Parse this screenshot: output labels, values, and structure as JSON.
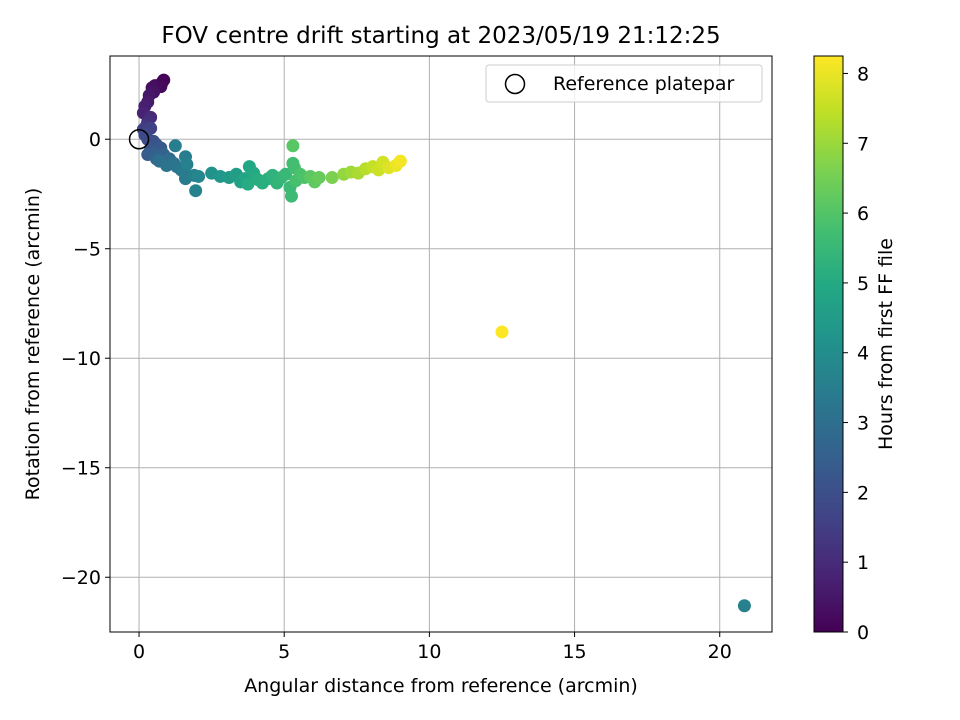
{
  "chart_data": {
    "type": "scatter",
    "title": "FOV centre drift starting at 2023/05/19 21:12:25",
    "xlabel": "Angular distance from reference (arcmin)",
    "ylabel": "Rotation from reference (arcmin)",
    "xlim": [
      -1.0,
      21.8
    ],
    "ylim": [
      -22.5,
      3.8
    ],
    "xticks": [
      0,
      5,
      10,
      15,
      20
    ],
    "xtick_labels": [
      "0",
      "5",
      "10",
      "15",
      "20"
    ],
    "yticks": [
      0,
      -5,
      -10,
      -15,
      -20
    ],
    "ytick_labels": [
      "0",
      "−5",
      "−10",
      "−15",
      "−20"
    ],
    "grid": true,
    "legend": {
      "placement": "top-right",
      "label": "Reference platepar",
      "marker": "open-circle"
    },
    "reference_point": {
      "x": 0,
      "y": 0
    },
    "colormap": "viridis",
    "colorbar": {
      "label": "Hours from first FF file",
      "range": [
        0,
        8.25
      ],
      "ticks": [
        0,
        1,
        2,
        3,
        4,
        5,
        6,
        7,
        8
      ],
      "tick_labels": [
        "0",
        "1",
        "2",
        "3",
        "4",
        "5",
        "6",
        "7",
        "8"
      ]
    },
    "points": [
      {
        "x": 0.85,
        "y": 2.7,
        "h": 0.05
      },
      {
        "x": 0.8,
        "y": 2.6,
        "h": 0.1
      },
      {
        "x": 0.75,
        "y": 2.4,
        "h": 0.2
      },
      {
        "x": 0.55,
        "y": 2.45,
        "h": 0.25
      },
      {
        "x": 0.45,
        "y": 2.35,
        "h": 0.35
      },
      {
        "x": 0.5,
        "y": 2.15,
        "h": 0.4
      },
      {
        "x": 0.35,
        "y": 2.0,
        "h": 0.5
      },
      {
        "x": 0.3,
        "y": 1.7,
        "h": 0.6
      },
      {
        "x": 0.2,
        "y": 1.5,
        "h": 0.7
      },
      {
        "x": 0.15,
        "y": 1.2,
        "h": 0.8
      },
      {
        "x": 0.4,
        "y": 1.0,
        "h": 1.0
      },
      {
        "x": 0.3,
        "y": 0.8,
        "h": 1.1
      },
      {
        "x": 0.25,
        "y": 0.6,
        "h": 1.3
      },
      {
        "x": 0.15,
        "y": 0.45,
        "h": 1.5
      },
      {
        "x": 0.4,
        "y": 0.5,
        "h": 1.6
      },
      {
        "x": 0.2,
        "y": 0.2,
        "h": 1.8
      },
      {
        "x": 0.3,
        "y": 0.0,
        "h": 1.9
      },
      {
        "x": 0.5,
        "y": -0.1,
        "h": 2.0
      },
      {
        "x": 0.6,
        "y": -0.25,
        "h": 2.1
      },
      {
        "x": 0.4,
        "y": -0.45,
        "h": 2.2
      },
      {
        "x": 0.75,
        "y": -0.4,
        "h": 2.3
      },
      {
        "x": 0.3,
        "y": -0.7,
        "h": 2.4
      },
      {
        "x": 0.55,
        "y": -0.65,
        "h": 2.5
      },
      {
        "x": 0.85,
        "y": -0.7,
        "h": 2.6
      },
      {
        "x": 0.6,
        "y": -0.9,
        "h": 2.7
      },
      {
        "x": 0.9,
        "y": -1.05,
        "h": 2.8
      },
      {
        "x": 1.05,
        "y": -0.9,
        "h": 2.9
      },
      {
        "x": 0.7,
        "y": -1.0,
        "h": 3.0
      },
      {
        "x": 1.2,
        "y": -1.1,
        "h": 3.1
      },
      {
        "x": 0.95,
        "y": -1.2,
        "h": 3.15
      },
      {
        "x": 1.3,
        "y": -1.25,
        "h": 3.2
      },
      {
        "x": 1.45,
        "y": -1.4,
        "h": 3.3
      },
      {
        "x": 1.55,
        "y": -1.5,
        "h": 3.35
      },
      {
        "x": 1.6,
        "y": -1.8,
        "h": 3.4
      },
      {
        "x": 1.25,
        "y": -0.3,
        "h": 3.45
      },
      {
        "x": 1.6,
        "y": -0.8,
        "h": 3.5
      },
      {
        "x": 1.65,
        "y": -1.15,
        "h": 3.55
      },
      {
        "x": 1.9,
        "y": -1.65,
        "h": 3.6
      },
      {
        "x": 1.95,
        "y": -2.35,
        "h": 3.65
      },
      {
        "x": 2.05,
        "y": -1.7,
        "h": 3.75
      },
      {
        "x": 2.5,
        "y": -1.55,
        "h": 4.2
      },
      {
        "x": 2.8,
        "y": -1.7,
        "h": 4.3
      },
      {
        "x": 3.1,
        "y": -1.75,
        "h": 4.5
      },
      {
        "x": 3.35,
        "y": -1.6,
        "h": 4.6
      },
      {
        "x": 3.5,
        "y": -1.95,
        "h": 4.7
      },
      {
        "x": 3.65,
        "y": -1.8,
        "h": 4.8
      },
      {
        "x": 3.8,
        "y": -1.25,
        "h": 4.9
      },
      {
        "x": 3.95,
        "y": -1.55,
        "h": 5.0
      },
      {
        "x": 3.75,
        "y": -2.05,
        "h": 5.05
      },
      {
        "x": 4.1,
        "y": -1.85,
        "h": 5.1
      },
      {
        "x": 4.25,
        "y": -2.0,
        "h": 5.15
      },
      {
        "x": 4.45,
        "y": -1.8,
        "h": 5.2
      },
      {
        "x": 4.6,
        "y": -1.65,
        "h": 5.3
      },
      {
        "x": 4.75,
        "y": -2.0,
        "h": 5.35
      },
      {
        "x": 4.9,
        "y": -1.75,
        "h": 5.4
      },
      {
        "x": 5.05,
        "y": -1.6,
        "h": 5.5
      },
      {
        "x": 5.2,
        "y": -2.2,
        "h": 5.55
      },
      {
        "x": 5.25,
        "y": -2.6,
        "h": 5.6
      },
      {
        "x": 5.3,
        "y": -1.1,
        "h": 5.7
      },
      {
        "x": 5.35,
        "y": -1.3,
        "h": 5.75
      },
      {
        "x": 5.4,
        "y": -1.9,
        "h": 5.8
      },
      {
        "x": 5.55,
        "y": -1.6,
        "h": 5.85
      },
      {
        "x": 5.7,
        "y": -1.75,
        "h": 5.9
      },
      {
        "x": 5.3,
        "y": -0.3,
        "h": 6.1
      },
      {
        "x": 5.9,
        "y": -1.7,
        "h": 6.15
      },
      {
        "x": 6.05,
        "y": -1.95,
        "h": 6.2
      },
      {
        "x": 6.2,
        "y": -1.75,
        "h": 6.3
      },
      {
        "x": 6.65,
        "y": -1.75,
        "h": 6.6
      },
      {
        "x": 7.05,
        "y": -1.6,
        "h": 6.9
      },
      {
        "x": 7.3,
        "y": -1.5,
        "h": 7.05
      },
      {
        "x": 7.55,
        "y": -1.55,
        "h": 7.2
      },
      {
        "x": 7.8,
        "y": -1.35,
        "h": 7.35
      },
      {
        "x": 8.05,
        "y": -1.25,
        "h": 7.5
      },
      {
        "x": 8.25,
        "y": -1.4,
        "h": 7.6
      },
      {
        "x": 8.4,
        "y": -1.05,
        "h": 7.7
      },
      {
        "x": 8.6,
        "y": -1.3,
        "h": 7.85
      },
      {
        "x": 8.85,
        "y": -1.2,
        "h": 8.0
      },
      {
        "x": 9.0,
        "y": -1.0,
        "h": 8.15
      },
      {
        "x": 12.5,
        "y": -8.8,
        "h": 8.25
      },
      {
        "x": 20.85,
        "y": -21.3,
        "h": 3.6
      }
    ]
  }
}
